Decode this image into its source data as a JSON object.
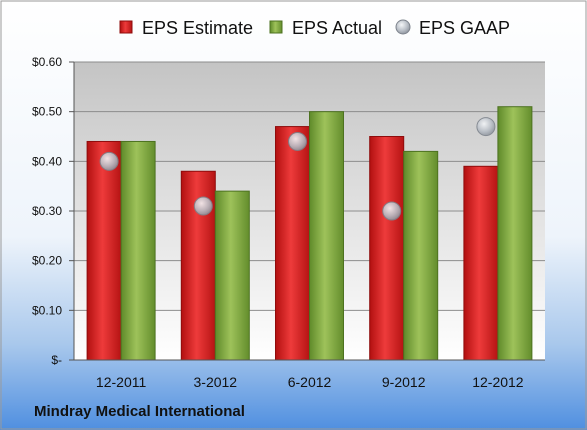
{
  "chart_data": {
    "type": "bar",
    "categories": [
      "12-2011",
      "3-2012",
      "6-2012",
      "9-2012",
      "12-2012"
    ],
    "series": [
      {
        "name": "EPS Estimate",
        "kind": "bar",
        "values": [
          0.44,
          0.38,
          0.47,
          0.45,
          0.39
        ],
        "color": "#d81e1e"
      },
      {
        "name": "EPS Actual",
        "kind": "bar",
        "values": [
          0.44,
          0.34,
          0.5,
          0.42,
          0.51
        ],
        "color": "#7aa33a"
      },
      {
        "name": "EPS GAAP",
        "kind": "marker",
        "values": [
          0.4,
          0.31,
          0.44,
          0.3,
          0.47
        ],
        "color": "#b8bec6"
      }
    ],
    "yticks": [
      "$-",
      "$0.10",
      "$0.20",
      "$0.30",
      "$0.40",
      "$0.50",
      "$0.60"
    ],
    "ylim": [
      0,
      0.6
    ],
    "grid": true,
    "legend_position": "top",
    "footer": "Mindray Medical International"
  }
}
